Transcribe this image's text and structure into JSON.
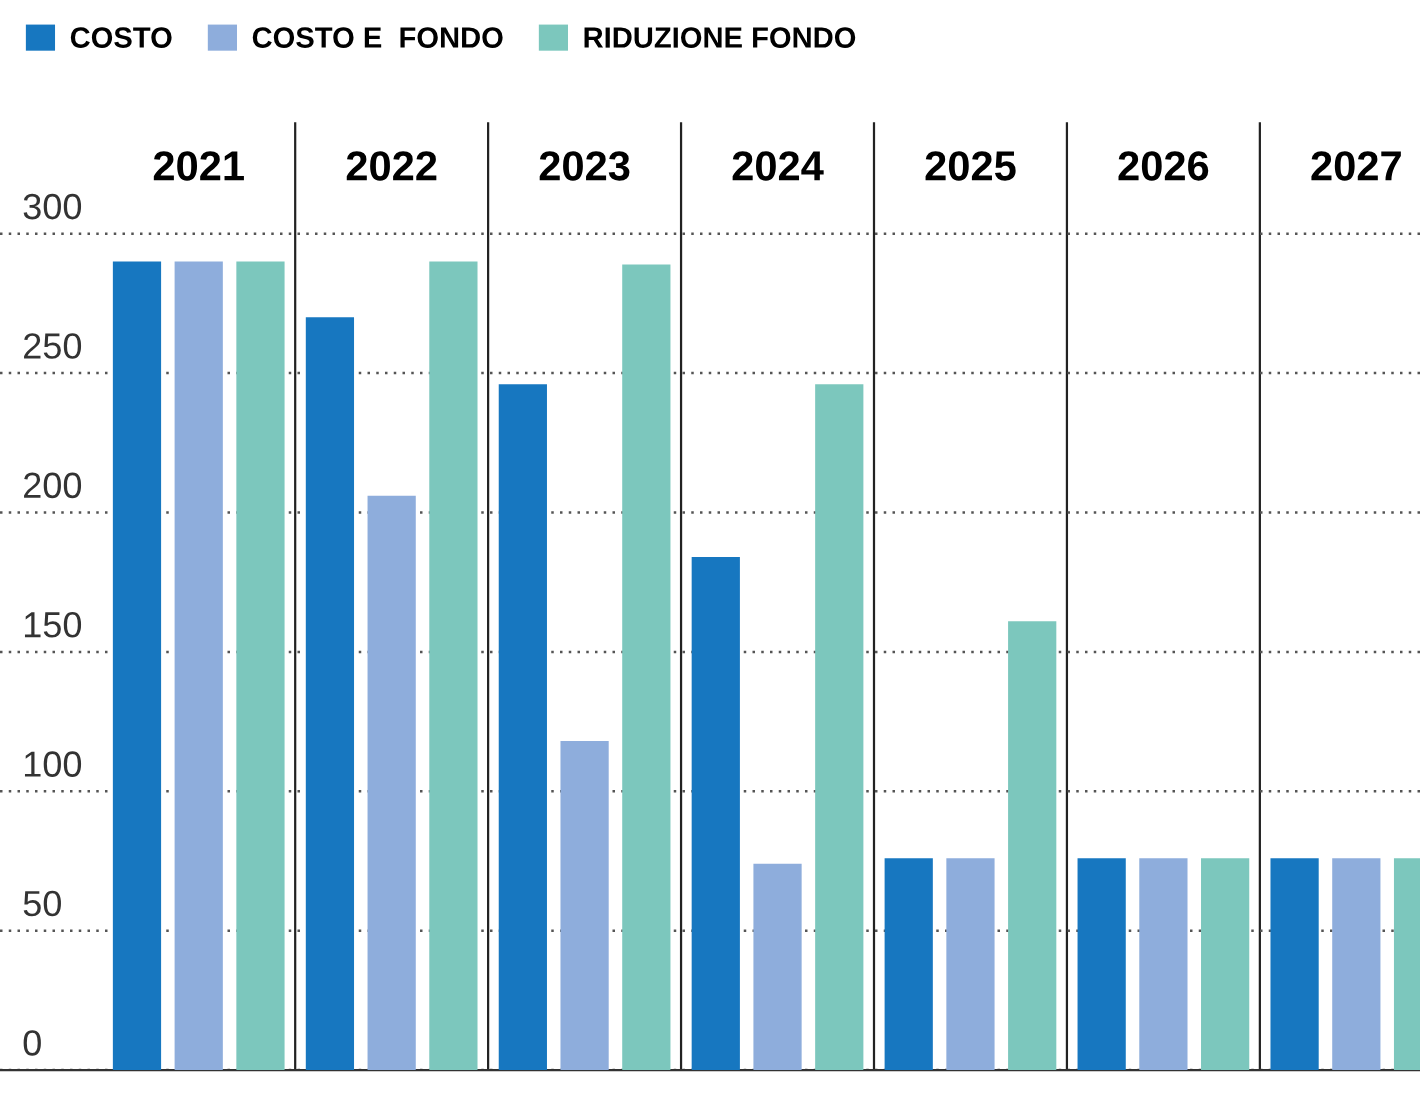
{
  "chart_data": {
    "type": "bar",
    "categories": [
      "2021",
      "2022",
      "2023",
      "2024",
      "2025",
      "2026",
      "2027"
    ],
    "series": [
      {
        "name": "COSTO",
        "color": "#1777c0",
        "values": [
          290,
          270,
          246,
          184,
          76,
          76,
          76
        ]
      },
      {
        "name": "COSTO E  FONDO",
        "color": "#8eaddc",
        "values": [
          290,
          206,
          118,
          74,
          76,
          76,
          76
        ]
      },
      {
        "name": "RIDUZIONE FONDO",
        "color": "#7cc7bd",
        "values": [
          290,
          290,
          289,
          246,
          161,
          76,
          76
        ]
      }
    ],
    "ylim": [
      0,
      340
    ],
    "yticks": [
      0,
      50,
      100,
      150,
      200,
      250,
      300
    ],
    "grid": "y",
    "legend": "top left"
  }
}
